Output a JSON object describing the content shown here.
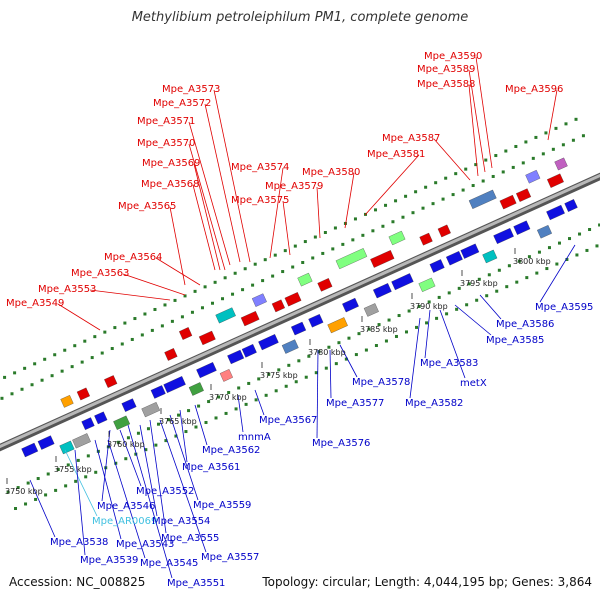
{
  "title": "Methylibium petroleiphilum PM1, complete genome",
  "footer": {
    "accession": "Accession: NC_008825",
    "summary": "Topology: circular; Length: 4,044,195 bp; Genes: 3,864"
  },
  "colors": {
    "top_label": "#e00000",
    "bottom_label": "#0000c8",
    "rna_label": "#40c0e0",
    "backbone": "#9a9a9a",
    "grid_dots": "#2a7a2a"
  },
  "ticks": [
    "3750 kbp",
    "3755 kbp",
    "3760 kbp",
    "3765 kbp",
    "3770 kbp",
    "3775 kbp",
    "3780 kbp",
    "3785 kbp",
    "3790 kbp",
    "3795 kbp",
    "3800 kbp"
  ],
  "top_labels": [
    "Mpe_A3549",
    "Mpe_A3553",
    "Mpe_A3563",
    "Mpe_A3564",
    "Mpe_A3565",
    "Mpe_A3568",
    "Mpe_A3569",
    "Mpe_A3570",
    "Mpe_A3571",
    "Mpe_A3572",
    "Mpe_A3573",
    "Mpe_A3574",
    "Mpe_A3575",
    "Mpe_A3579",
    "Mpe_A3580",
    "Mpe_A3581",
    "Mpe_A3587",
    "Mpe_A3588",
    "Mpe_A3589",
    "Mpe_A3590",
    "Mpe_A3596"
  ],
  "bottom_labels": [
    "Mpe_A3538",
    "Mpe_AR0069",
    "Mpe_A3539",
    "Mpe_A3543",
    "Mpe_A3545",
    "Mpe_A3546",
    "Mpe_A3552",
    "Mpe_A3551",
    "Mpe_A3554",
    "Mpe_A3555",
    "Mpe_A3557",
    "Mpe_A3559",
    "Mpe_A3561",
    "Mpe_A3562",
    "mnmA",
    "Mpe_A3567",
    "Mpe_A3576",
    "Mpe_A3577",
    "Mpe_A3578",
    "Mpe_A3582",
    "Mpe_A3583",
    "metX",
    "Mpe_A3585",
    "Mpe_A3586",
    "Mpe_A3595"
  ]
}
